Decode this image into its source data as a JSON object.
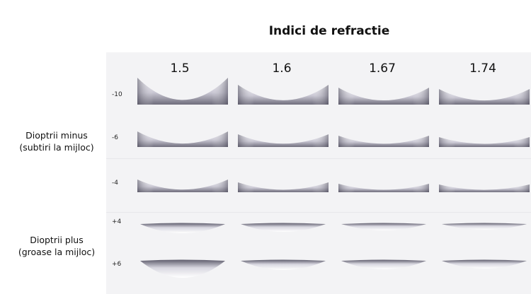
{
  "title": "Indici de refractie",
  "columns": [
    "1.5",
    "1.6",
    "1.67",
    "1.74"
  ],
  "rows": [
    "-10",
    "-6",
    "-4",
    "+4",
    "+6"
  ],
  "groups": {
    "minus": {
      "line1": "Dioptrii minus",
      "line2": "(subtiri la mijloc)"
    },
    "plus": {
      "line1": "Dioptrii plus",
      "line2": "(groase la mijloc)"
    }
  }
}
